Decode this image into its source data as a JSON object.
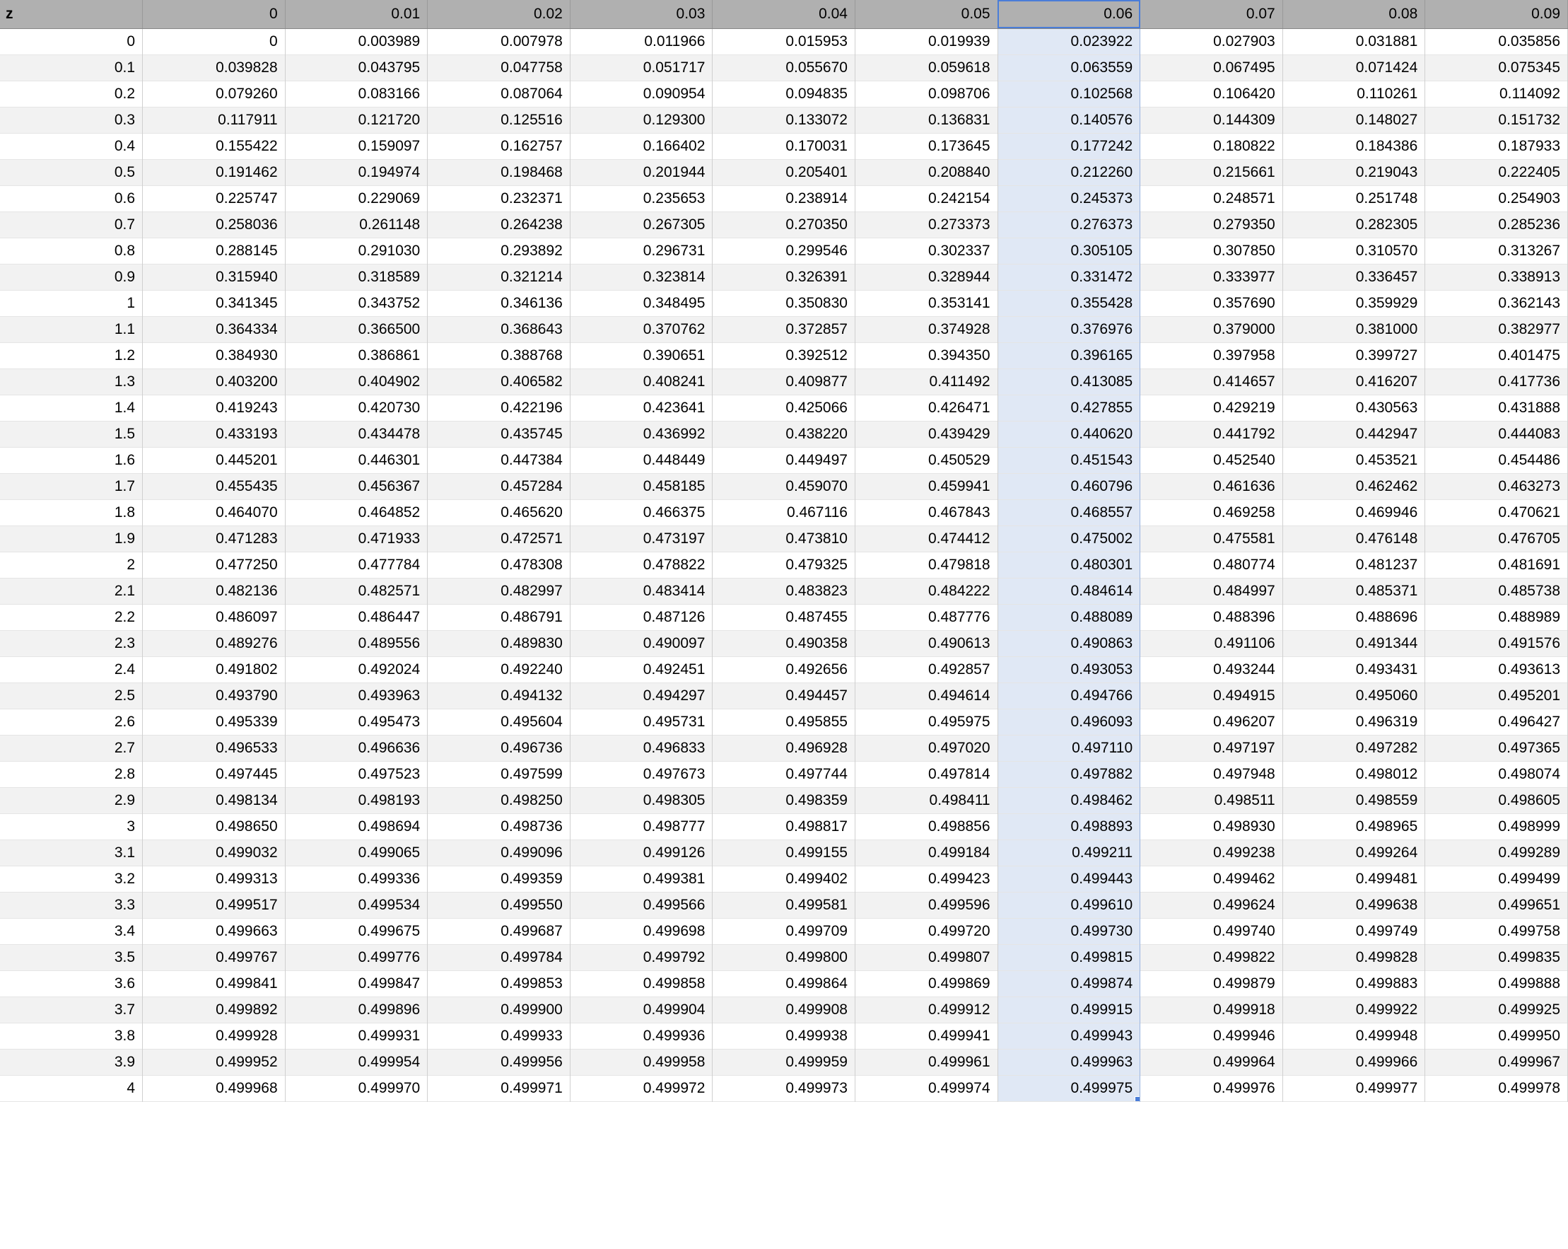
{
  "table": {
    "corner_label": "z",
    "selected_column_index": 7,
    "column_headers": [
      "0",
      "0.01",
      "0.02",
      "0.03",
      "0.04",
      "0.05",
      "0.06",
      "0.07",
      "0.08",
      "0.09"
    ],
    "row_headers": [
      "0",
      "0.1",
      "0.2",
      "0.3",
      "0.4",
      "0.5",
      "0.6",
      "0.7",
      "0.8",
      "0.9",
      "1",
      "1.1",
      "1.2",
      "1.3",
      "1.4",
      "1.5",
      "1.6",
      "1.7",
      "1.8",
      "1.9",
      "2",
      "2.1",
      "2.2",
      "2.3",
      "2.4",
      "2.5",
      "2.6",
      "2.7",
      "2.8",
      "2.9",
      "3",
      "3.1",
      "3.2",
      "3.3",
      "3.4",
      "3.5",
      "3.6",
      "3.7",
      "3.8",
      "3.9",
      "4"
    ],
    "rows": [
      [
        "0",
        "0.003989",
        "0.007978",
        "0.011966",
        "0.015953",
        "0.019939",
        "0.023922",
        "0.027903",
        "0.031881",
        "0.035856"
      ],
      [
        "0.039828",
        "0.043795",
        "0.047758",
        "0.051717",
        "0.055670",
        "0.059618",
        "0.063559",
        "0.067495",
        "0.071424",
        "0.075345"
      ],
      [
        "0.079260",
        "0.083166",
        "0.087064",
        "0.090954",
        "0.094835",
        "0.098706",
        "0.102568",
        "0.106420",
        "0.110261",
        "0.114092"
      ],
      [
        "0.117911",
        "0.121720",
        "0.125516",
        "0.129300",
        "0.133072",
        "0.136831",
        "0.140576",
        "0.144309",
        "0.148027",
        "0.151732"
      ],
      [
        "0.155422",
        "0.159097",
        "0.162757",
        "0.166402",
        "0.170031",
        "0.173645",
        "0.177242",
        "0.180822",
        "0.184386",
        "0.187933"
      ],
      [
        "0.191462",
        "0.194974",
        "0.198468",
        "0.201944",
        "0.205401",
        "0.208840",
        "0.212260",
        "0.215661",
        "0.219043",
        "0.222405"
      ],
      [
        "0.225747",
        "0.229069",
        "0.232371",
        "0.235653",
        "0.238914",
        "0.242154",
        "0.245373",
        "0.248571",
        "0.251748",
        "0.254903"
      ],
      [
        "0.258036",
        "0.261148",
        "0.264238",
        "0.267305",
        "0.270350",
        "0.273373",
        "0.276373",
        "0.279350",
        "0.282305",
        "0.285236"
      ],
      [
        "0.288145",
        "0.291030",
        "0.293892",
        "0.296731",
        "0.299546",
        "0.302337",
        "0.305105",
        "0.307850",
        "0.310570",
        "0.313267"
      ],
      [
        "0.315940",
        "0.318589",
        "0.321214",
        "0.323814",
        "0.326391",
        "0.328944",
        "0.331472",
        "0.333977",
        "0.336457",
        "0.338913"
      ],
      [
        "0.341345",
        "0.343752",
        "0.346136",
        "0.348495",
        "0.350830",
        "0.353141",
        "0.355428",
        "0.357690",
        "0.359929",
        "0.362143"
      ],
      [
        "0.364334",
        "0.366500",
        "0.368643",
        "0.370762",
        "0.372857",
        "0.374928",
        "0.376976",
        "0.379000",
        "0.381000",
        "0.382977"
      ],
      [
        "0.384930",
        "0.386861",
        "0.388768",
        "0.390651",
        "0.392512",
        "0.394350",
        "0.396165",
        "0.397958",
        "0.399727",
        "0.401475"
      ],
      [
        "0.403200",
        "0.404902",
        "0.406582",
        "0.408241",
        "0.409877",
        "0.411492",
        "0.413085",
        "0.414657",
        "0.416207",
        "0.417736"
      ],
      [
        "0.419243",
        "0.420730",
        "0.422196",
        "0.423641",
        "0.425066",
        "0.426471",
        "0.427855",
        "0.429219",
        "0.430563",
        "0.431888"
      ],
      [
        "0.433193",
        "0.434478",
        "0.435745",
        "0.436992",
        "0.438220",
        "0.439429",
        "0.440620",
        "0.441792",
        "0.442947",
        "0.444083"
      ],
      [
        "0.445201",
        "0.446301",
        "0.447384",
        "0.448449",
        "0.449497",
        "0.450529",
        "0.451543",
        "0.452540",
        "0.453521",
        "0.454486"
      ],
      [
        "0.455435",
        "0.456367",
        "0.457284",
        "0.458185",
        "0.459070",
        "0.459941",
        "0.460796",
        "0.461636",
        "0.462462",
        "0.463273"
      ],
      [
        "0.464070",
        "0.464852",
        "0.465620",
        "0.466375",
        "0.467116",
        "0.467843",
        "0.468557",
        "0.469258",
        "0.469946",
        "0.470621"
      ],
      [
        "0.471283",
        "0.471933",
        "0.472571",
        "0.473197",
        "0.473810",
        "0.474412",
        "0.475002",
        "0.475581",
        "0.476148",
        "0.476705"
      ],
      [
        "0.477250",
        "0.477784",
        "0.478308",
        "0.478822",
        "0.479325",
        "0.479818",
        "0.480301",
        "0.480774",
        "0.481237",
        "0.481691"
      ],
      [
        "0.482136",
        "0.482571",
        "0.482997",
        "0.483414",
        "0.483823",
        "0.484222",
        "0.484614",
        "0.484997",
        "0.485371",
        "0.485738"
      ],
      [
        "0.486097",
        "0.486447",
        "0.486791",
        "0.487126",
        "0.487455",
        "0.487776",
        "0.488089",
        "0.488396",
        "0.488696",
        "0.488989"
      ],
      [
        "0.489276",
        "0.489556",
        "0.489830",
        "0.490097",
        "0.490358",
        "0.490613",
        "0.490863",
        "0.491106",
        "0.491344",
        "0.491576"
      ],
      [
        "0.491802",
        "0.492024",
        "0.492240",
        "0.492451",
        "0.492656",
        "0.492857",
        "0.493053",
        "0.493244",
        "0.493431",
        "0.493613"
      ],
      [
        "0.493790",
        "0.493963",
        "0.494132",
        "0.494297",
        "0.494457",
        "0.494614",
        "0.494766",
        "0.494915",
        "0.495060",
        "0.495201"
      ],
      [
        "0.495339",
        "0.495473",
        "0.495604",
        "0.495731",
        "0.495855",
        "0.495975",
        "0.496093",
        "0.496207",
        "0.496319",
        "0.496427"
      ],
      [
        "0.496533",
        "0.496636",
        "0.496736",
        "0.496833",
        "0.496928",
        "0.497020",
        "0.497110",
        "0.497197",
        "0.497282",
        "0.497365"
      ],
      [
        "0.497445",
        "0.497523",
        "0.497599",
        "0.497673",
        "0.497744",
        "0.497814",
        "0.497882",
        "0.497948",
        "0.498012",
        "0.498074"
      ],
      [
        "0.498134",
        "0.498193",
        "0.498250",
        "0.498305",
        "0.498359",
        "0.498411",
        "0.498462",
        "0.498511",
        "0.498559",
        "0.498605"
      ],
      [
        "0.498650",
        "0.498694",
        "0.498736",
        "0.498777",
        "0.498817",
        "0.498856",
        "0.498893",
        "0.498930",
        "0.498965",
        "0.498999"
      ],
      [
        "0.499032",
        "0.499065",
        "0.499096",
        "0.499126",
        "0.499155",
        "0.499184",
        "0.499211",
        "0.499238",
        "0.499264",
        "0.499289"
      ],
      [
        "0.499313",
        "0.499336",
        "0.499359",
        "0.499381",
        "0.499402",
        "0.499423",
        "0.499443",
        "0.499462",
        "0.499481",
        "0.499499"
      ],
      [
        "0.499517",
        "0.499534",
        "0.499550",
        "0.499566",
        "0.499581",
        "0.499596",
        "0.499610",
        "0.499624",
        "0.499638",
        "0.499651"
      ],
      [
        "0.499663",
        "0.499675",
        "0.499687",
        "0.499698",
        "0.499709",
        "0.499720",
        "0.499730",
        "0.499740",
        "0.499749",
        "0.499758"
      ],
      [
        "0.499767",
        "0.499776",
        "0.499784",
        "0.499792",
        "0.499800",
        "0.499807",
        "0.499815",
        "0.499822",
        "0.499828",
        "0.499835"
      ],
      [
        "0.499841",
        "0.499847",
        "0.499853",
        "0.499858",
        "0.499864",
        "0.499869",
        "0.499874",
        "0.499879",
        "0.499883",
        "0.499888"
      ],
      [
        "0.499892",
        "0.499896",
        "0.499900",
        "0.499904",
        "0.499908",
        "0.499912",
        "0.499915",
        "0.499918",
        "0.499922",
        "0.499925"
      ],
      [
        "0.499928",
        "0.499931",
        "0.499933",
        "0.499936",
        "0.499938",
        "0.499941",
        "0.499943",
        "0.499946",
        "0.499948",
        "0.499950"
      ],
      [
        "0.499952",
        "0.499954",
        "0.499956",
        "0.499958",
        "0.499959",
        "0.499961",
        "0.499963",
        "0.499964",
        "0.499966",
        "0.499967"
      ],
      [
        "0.499968",
        "0.499970",
        "0.499971",
        "0.499972",
        "0.499973",
        "0.499974",
        "0.499975",
        "0.499976",
        "0.499977",
        "0.499978"
      ]
    ]
  }
}
